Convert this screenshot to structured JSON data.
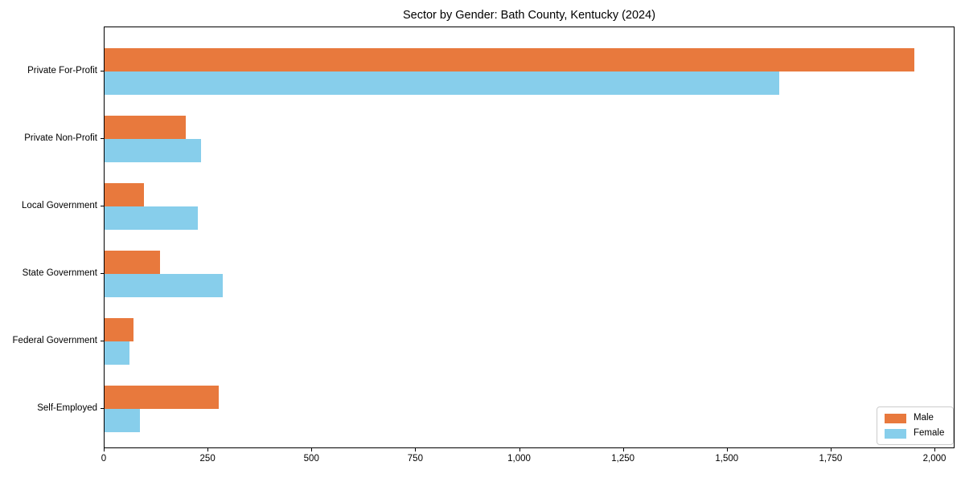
{
  "title": "Sector by Gender: Bath County, Kentucky (2024)",
  "chart_data": {
    "type": "bar",
    "orientation": "horizontal",
    "title": "Sector by Gender: Bath County, Kentucky (2024)",
    "xlabel": "",
    "ylabel": "",
    "categories": [
      "Private For-Profit",
      "Private Non-Profit",
      "Local Government",
      "State Government",
      "Federal Government",
      "Self-Employed"
    ],
    "series": [
      {
        "name": "Male",
        "color": "#e8793d",
        "values": [
          1950,
          195,
          95,
          133,
          70,
          275
        ]
      },
      {
        "name": "Female",
        "color": "#87ceeb",
        "values": [
          1625,
          232,
          225,
          285,
          60,
          85
        ]
      }
    ],
    "xlim": [
      0,
      2000
    ],
    "xticks": {
      "values": [
        0,
        250,
        500,
        750,
        1000,
        1250,
        1500,
        1750,
        2000
      ],
      "labels": [
        "0",
        "250",
        "500",
        "750",
        "1,000",
        "1,250",
        "1,500",
        "1,750",
        "2,000"
      ]
    },
    "grid": false,
    "legend": {
      "position": "lower right",
      "entries": [
        "Male",
        "Female"
      ]
    }
  }
}
